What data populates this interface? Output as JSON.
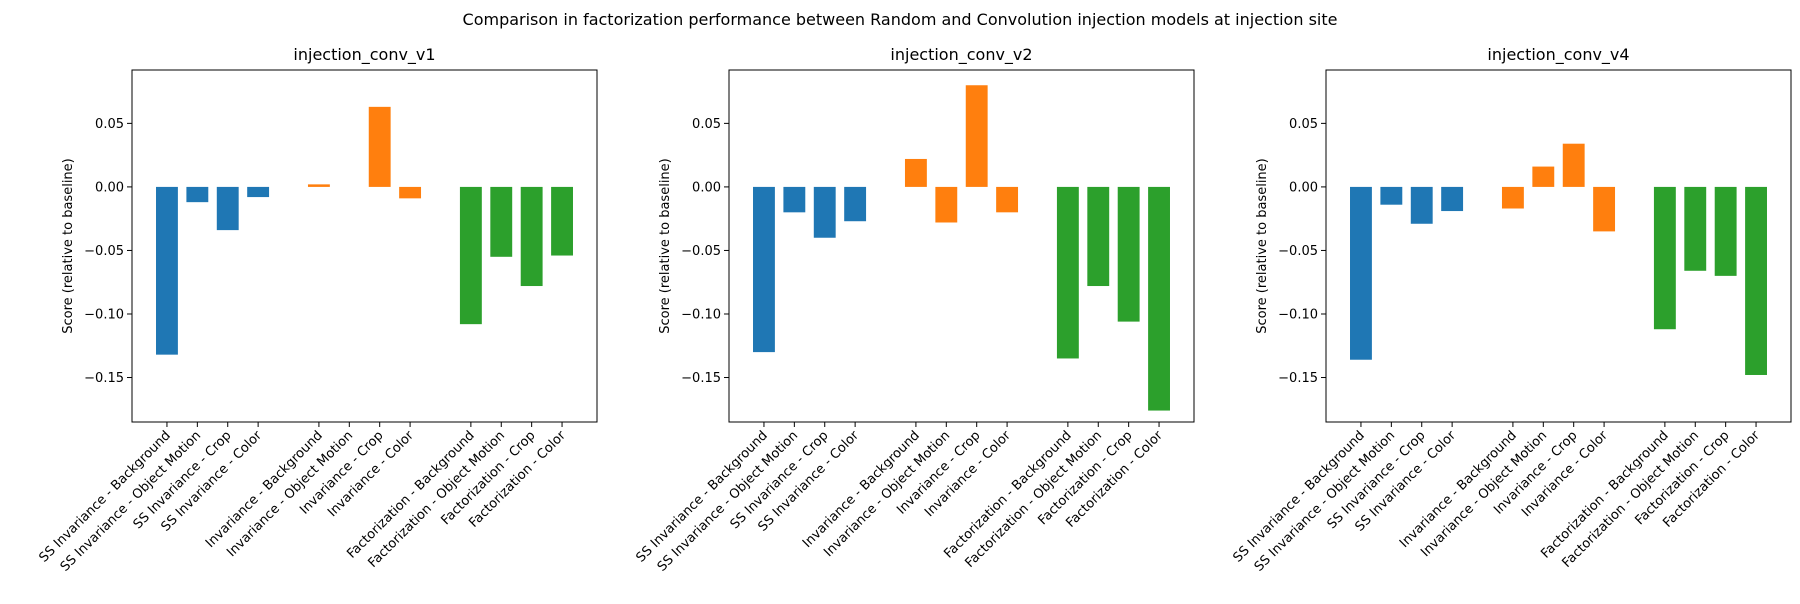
{
  "figure": {
    "suptitle": "Comparison in factorization performance between Random and Convolution injection models at injection site"
  },
  "colors": {
    "SS Invariance": "#1f77b4",
    "Invariance": "#ff7f0e",
    "Factorization": "#2ca02c"
  },
  "chart_data": [
    {
      "type": "bar",
      "title": "injection_conv_v1",
      "xlabel": "",
      "ylabel": "Score (relative to baseline)",
      "ylim": [
        -0.185,
        0.092
      ],
      "yticks": [
        0.05,
        0.0,
        -0.05,
        -0.1,
        -0.15
      ],
      "yticklabels": [
        "0.05",
        "0.00",
        "−0.05",
        "−0.10",
        "−0.15"
      ],
      "categories": [
        "SS Invariance - Background",
        "SS Invariance - Object Motion",
        "SS Invariance - Crop",
        "SS Invariance - Color",
        "Invariance - Background",
        "Invariance - Object Motion",
        "Invariance - Crop",
        "Invariance - Color",
        "Factorization - Background",
        "Factorization - Object Motion",
        "Factorization - Crop",
        "Factorization - Color"
      ],
      "values": [
        -0.132,
        -0.012,
        -0.034,
        -0.008,
        0.002,
        0.0,
        0.063,
        -0.009,
        -0.108,
        -0.055,
        -0.078,
        -0.054
      ],
      "groups": [
        "SS Invariance",
        "SS Invariance",
        "SS Invariance",
        "SS Invariance",
        "Invariance",
        "Invariance",
        "Invariance",
        "Invariance",
        "Factorization",
        "Factorization",
        "Factorization",
        "Factorization"
      ]
    },
    {
      "type": "bar",
      "title": "injection_conv_v2",
      "xlabel": "",
      "ylabel": "Score (relative to baseline)",
      "ylim": [
        -0.185,
        0.092
      ],
      "yticks": [
        0.05,
        0.0,
        -0.05,
        -0.1,
        -0.15
      ],
      "yticklabels": [
        "0.05",
        "0.00",
        "−0.05",
        "−0.10",
        "−0.15"
      ],
      "categories": [
        "SS Invariance - Background",
        "SS Invariance - Object Motion",
        "SS Invariance - Crop",
        "SS Invariance - Color",
        "Invariance - Background",
        "Invariance - Object Motion",
        "Invariance - Crop",
        "Invariance - Color",
        "Factorization - Background",
        "Factorization - Object Motion",
        "Factorization - Crop",
        "Factorization - Color"
      ],
      "values": [
        -0.13,
        -0.02,
        -0.04,
        -0.027,
        0.022,
        -0.028,
        0.08,
        -0.02,
        -0.135,
        -0.078,
        -0.106,
        -0.176
      ],
      "groups": [
        "SS Invariance",
        "SS Invariance",
        "SS Invariance",
        "SS Invariance",
        "Invariance",
        "Invariance",
        "Invariance",
        "Invariance",
        "Factorization",
        "Factorization",
        "Factorization",
        "Factorization"
      ]
    },
    {
      "type": "bar",
      "title": "injection_conv_v4",
      "xlabel": "",
      "ylabel": "Score (relative to baseline)",
      "ylim": [
        -0.185,
        0.092
      ],
      "yticks": [
        0.05,
        0.0,
        -0.05,
        -0.1,
        -0.15
      ],
      "yticklabels": [
        "0.05",
        "0.00",
        "−0.05",
        "−0.10",
        "−0.15"
      ],
      "categories": [
        "SS Invariance - Background",
        "SS Invariance - Object Motion",
        "SS Invariance - Crop",
        "SS Invariance - Color",
        "Invariance - Background",
        "Invariance - Object Motion",
        "Invariance - Crop",
        "Invariance - Color",
        "Factorization - Background",
        "Factorization - Object Motion",
        "Factorization - Crop",
        "Factorization - Color"
      ],
      "values": [
        -0.136,
        -0.014,
        -0.029,
        -0.019,
        -0.017,
        0.016,
        0.034,
        -0.035,
        -0.112,
        -0.066,
        -0.07,
        -0.148
      ],
      "groups": [
        "SS Invariance",
        "SS Invariance",
        "SS Invariance",
        "SS Invariance",
        "Invariance",
        "Invariance",
        "Invariance",
        "Invariance",
        "Factorization",
        "Factorization",
        "Factorization",
        "Factorization"
      ]
    }
  ]
}
